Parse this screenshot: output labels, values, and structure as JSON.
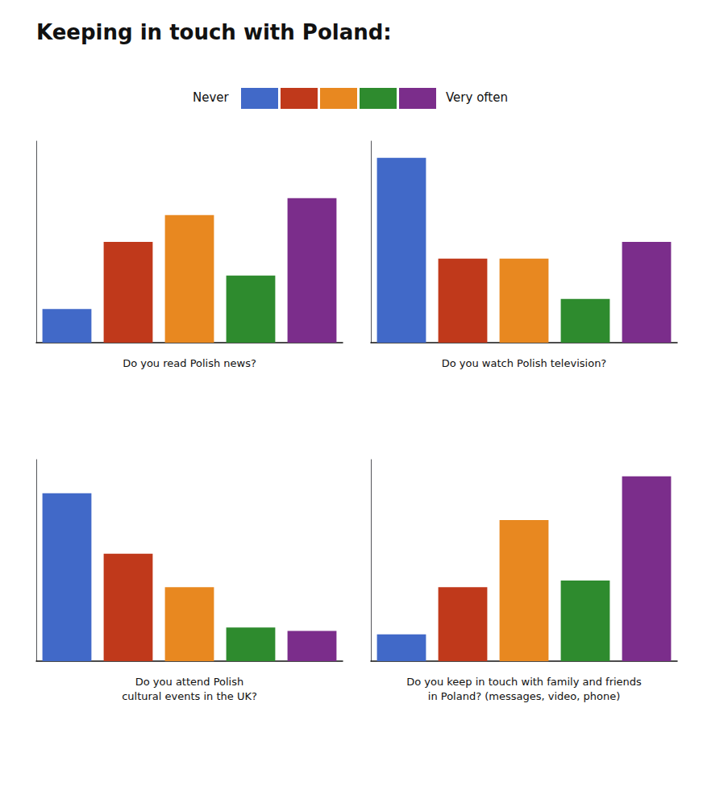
{
  "title": "Keeping in touch with Poland:",
  "annotations": [
    "Never",
    "Very often"
  ],
  "chart_data": [
    {
      "type": "bar",
      "xlabel": "Do you read Polish news?",
      "categories": [
        null,
        null,
        null,
        null,
        null
      ],
      "values": [
        10,
        30,
        38,
        20,
        43
      ],
      "colors": [
        "#4169C8",
        "#C0391B",
        "#E88820",
        "#2E8B2E",
        "#7B2D8B"
      ],
      "ylim": [
        0,
        60
      ],
      "tick_labels": false,
      "grid": false
    },
    {
      "type": "bar",
      "xlabel": "Do you watch Polish television?",
      "categories": [
        null,
        null,
        null,
        null,
        null
      ],
      "values": [
        55,
        25,
        25,
        13,
        30
      ],
      "colors": [
        "#4169C8",
        "#C0391B",
        "#E88820",
        "#2E8B2E",
        "#7B2D8B"
      ],
      "ylim": [
        0,
        60
      ],
      "tick_labels": false,
      "grid": false
    },
    {
      "type": "bar",
      "xlabel": "Do you attend Polish\ncultural events in the UK?",
      "categories": [
        null,
        null,
        null,
        null,
        null
      ],
      "values": [
        50,
        32,
        22,
        10,
        9
      ],
      "colors": [
        "#4169C8",
        "#C0391B",
        "#E88820",
        "#2E8B2E",
        "#7B2D8B"
      ],
      "ylim": [
        0,
        60
      ],
      "tick_labels": false,
      "grid": false
    },
    {
      "type": "bar",
      "xlabel": "Do you keep in touch with family and friends\nin Poland? (messages, video, phone)",
      "categories": [
        null,
        null,
        null,
        null,
        null
      ],
      "values": [
        8,
        22,
        42,
        24,
        55
      ],
      "colors": [
        "#4169C8",
        "#C0391B",
        "#E88820",
        "#2E8B2E",
        "#7B2D8B"
      ],
      "ylim": [
        0,
        60
      ],
      "tick_labels": false,
      "grid": false
    }
  ]
}
